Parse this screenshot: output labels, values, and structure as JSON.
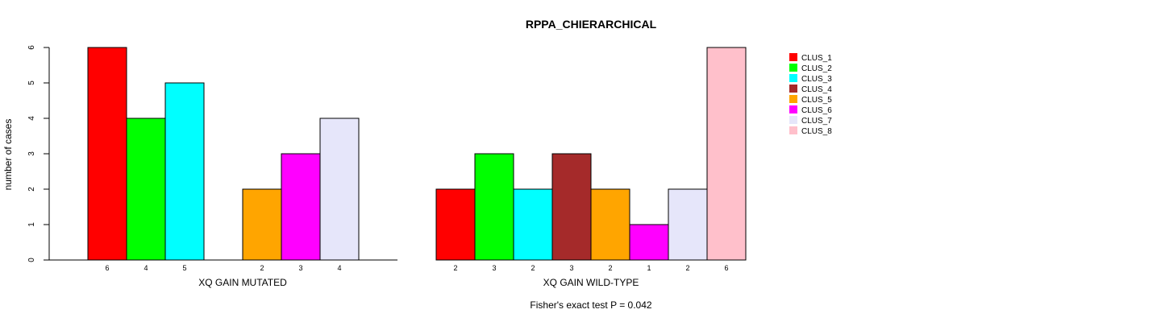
{
  "chart_data": {
    "type": "bar",
    "title": "RPPA_CHIERARCHICAL",
    "ylabel": "number of cases",
    "ylim": [
      0,
      6
    ],
    "yticks": [
      "0",
      "1",
      "2",
      "3",
      "4",
      "5",
      "6"
    ],
    "footnote": "Fisher's exact test P = 0.042",
    "legend_position": "top-right",
    "clusters": [
      {
        "name": "CLUS_1",
        "color": "#FF0000"
      },
      {
        "name": "CLUS_2",
        "color": "#00FF00"
      },
      {
        "name": "CLUS_3",
        "color": "#00FFFF"
      },
      {
        "name": "CLUS_4",
        "color": "#A52A2A"
      },
      {
        "name": "CLUS_5",
        "color": "#FFA500"
      },
      {
        "name": "CLUS_6",
        "color": "#FF00FF"
      },
      {
        "name": "CLUS_7",
        "color": "#E6E6FA"
      },
      {
        "name": "CLUS_8",
        "color": "#FFC0CB"
      }
    ],
    "groups": [
      {
        "label": "XQ GAIN MUTATED",
        "values": [
          6,
          4,
          5,
          0,
          2,
          3,
          4,
          0
        ]
      },
      {
        "label": "XQ GAIN WILD-TYPE",
        "values": [
          2,
          3,
          2,
          3,
          2,
          1,
          2,
          6
        ]
      }
    ]
  }
}
